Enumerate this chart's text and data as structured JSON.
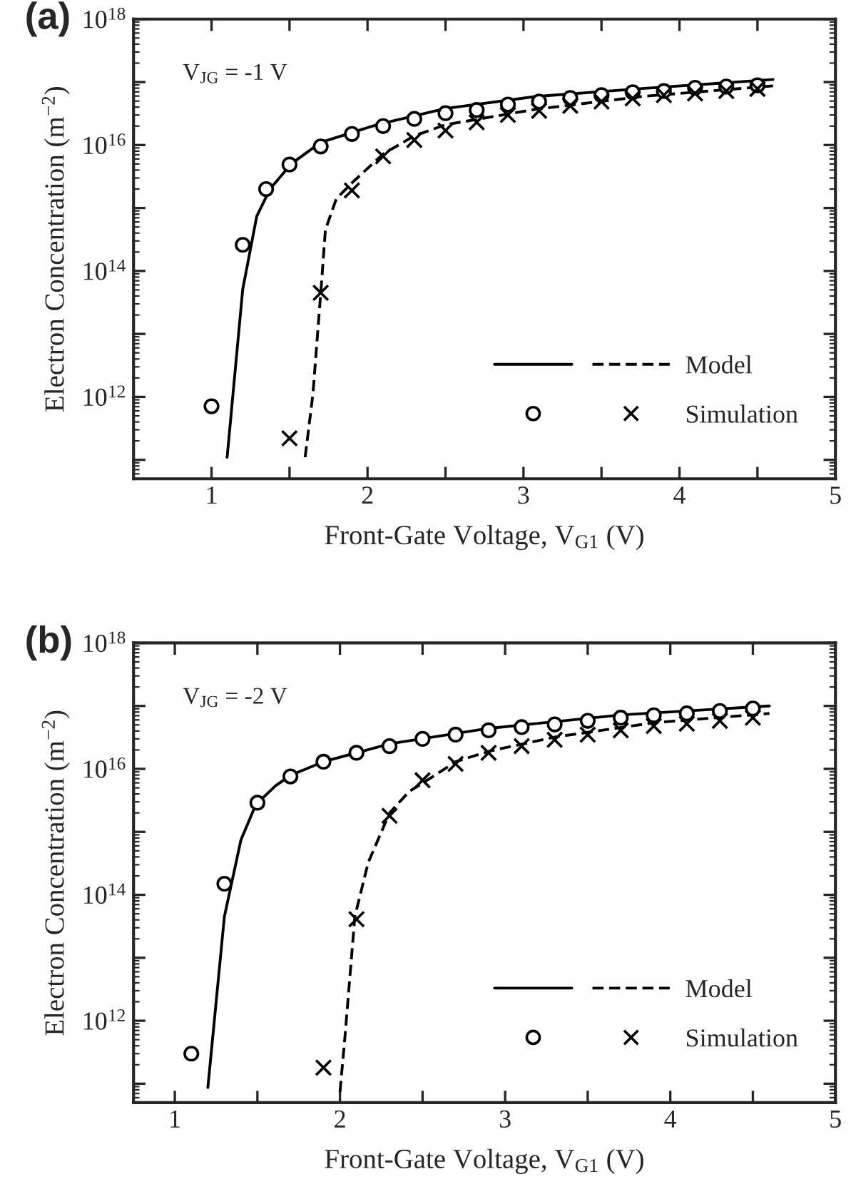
{
  "chart_data": [
    {
      "type": "line",
      "xlabel": "Front-Gate Voltage, V$_{G1}$ (V)",
      "ylabel": "Electron Concentration (m$^{−2}$)",
      "annotations": [
        "(a)",
        "V$_{JG}$ = -1 V"
      ],
      "log": "y",
      "grid": false,
      "legend": "bottom right",
      "xlim": [
        0.5,
        5
      ],
      "xticks": [
        1,
        {
          "value": 1.5,
          "label": null
        },
        2,
        {
          "value": 2.5,
          "label": null
        },
        3,
        {
          "value": 3.5,
          "label": null
        },
        4,
        {
          "value": 4.5,
          "label": null
        },
        5
      ],
      "ylim": [
        50000000000.0,
        1e+18
      ],
      "yticks": [
        {
          "value": 100000000000.0,
          "label": null
        },
        {
          "value": 1000000000000.0,
          "label": "10$^{12}$"
        },
        {
          "value": 10000000000000.0,
          "label": null
        },
        {
          "value": 100000000000000.0,
          "label": "10$^{14}$"
        },
        {
          "value": 1000000000000000.0,
          "label": null
        },
        {
          "value": 1e+16,
          "label": "10$^{16}$"
        },
        {
          "value": 1e+17,
          "label": null
        },
        {
          "value": 1e+18,
          "label": "10$^{18}$"
        }
      ],
      "series": [
        {
          "type": "line",
          "line_style": "solid",
          "marker": "none",
          "color": "#000000",
          "x": [
            1.1,
            1.2,
            1.29,
            1.375,
            1.51,
            1.7,
            2.06,
            2.5,
            3.08,
            3.76,
            4.6
          ],
          "values": [
            110000000000.0,
            51000000000000.0,
            740000000000000.0,
            2000000000000000.0,
            5000000000000000.0,
            1.1e+16,
            2.1e+16,
            3.8e+16,
            5.9e+16,
            7.9e+16,
            1.1e+17
          ]
        },
        {
          "name": "Model",
          "type": "line",
          "line_style": "dashed",
          "marker": "none",
          "color": "#000000",
          "x": [
            1.6,
            1.65,
            1.706,
            1.73,
            1.8,
            1.9,
            2.1,
            2.3,
            2.5,
            3.08,
            3.76,
            4.6
          ],
          "values": [
            110000000000.0,
            1100000000000.0,
            69000000000000.0,
            450000000000000.0,
            1400000000000000.0,
            2500000000000000.0,
            7200000000000000.0,
            1.4e+16,
            2.1e+16,
            3.7e+16,
            5.9e+16,
            8.7e+16
          ]
        },
        {
          "type": "scatter",
          "marker": "circle",
          "color": "#000000",
          "x": [
            1.0,
            1.2,
            1.35,
            1.5,
            1.7,
            1.9,
            2.1,
            2.3,
            2.5,
            2.7,
            2.9,
            3.1,
            3.3,
            3.5,
            3.7,
            3.9,
            4.1,
            4.3,
            4.5
          ],
          "values": [
            710000000000.0,
            260000000000000.0,
            2000000000000000.0,
            4900000000000000.0,
            9500000000000000.0,
            1.5e+16,
            2e+16,
            2.6e+16,
            3.2e+16,
            3.6e+16,
            4.4e+16,
            4.9e+16,
            5.6e+16,
            6.2e+16,
            6.9e+16,
            7.2e+16,
            8.1e+16,
            8.5e+16,
            8.9e+16
          ]
        },
        {
          "name": "Simulation",
          "type": "scatter",
          "marker": "cross",
          "color": "#000000",
          "x": [
            1.5,
            1.7,
            1.9,
            2.1,
            2.3,
            2.5,
            2.7,
            2.9,
            3.1,
            3.3,
            3.5,
            3.7,
            3.9,
            4.1,
            4.3,
            4.5
          ],
          "values": [
            220000000000.0,
            45000000000000.0,
            1900000000000000.0,
            6600000000000000.0,
            1.2e+16,
            1.7e+16,
            2.3e+16,
            3e+16,
            3.5e+16,
            4.2e+16,
            4.9e+16,
            5.5e+16,
            6.2e+16,
            6.6e+16,
            7.2e+16,
            7.8e+16
          ]
        }
      ]
    },
    {
      "type": "line",
      "xlabel": "Front-Gate Voltage, V$_{G1}$ (V)",
      "ylabel": "Electron Concentration (m$^{−2}$)",
      "annotations": [
        "(b)",
        "V$_{JG}$ = -2 V"
      ],
      "log": "y",
      "grid": false,
      "legend": "bottom right",
      "xlim": [
        0.75,
        5
      ],
      "xticks": [
        1,
        {
          "value": 1.5,
          "label": null
        },
        2,
        {
          "value": 2.5,
          "label": null
        },
        3,
        {
          "value": 3.5,
          "label": null
        },
        4,
        {
          "value": 4.5,
          "label": null
        },
        5
      ],
      "ylim": [
        50000000000.0,
        1e+18
      ],
      "yticks": [
        {
          "value": 100000000000.0,
          "label": null
        },
        {
          "value": 1000000000000.0,
          "label": "10$^{12}$"
        },
        {
          "value": 10000000000000.0,
          "label": null
        },
        {
          "value": 100000000000000.0,
          "label": "10$^{14}$"
        },
        {
          "value": 1000000000000000.0,
          "label": null
        },
        {
          "value": 1e+16,
          "label": "10$^{16}$"
        },
        {
          "value": 1e+17,
          "label": null
        },
        {
          "value": 1e+18,
          "label": "10$^{18}$"
        }
      ],
      "series": [
        {
          "type": "line",
          "line_style": "solid",
          "marker": "none",
          "color": "#000000",
          "x": [
            1.2,
            1.3,
            1.4,
            1.49,
            1.61,
            1.7,
            1.9,
            2.3,
            2.9,
            3.7,
            4.6
          ],
          "values": [
            87000000000.0,
            45000000000000.0,
            740000000000000.0,
            2700000000000000.0,
            5400000000000000.0,
            7900000000000000.0,
            1.3e+16,
            2.5e+16,
            4.4e+16,
            7.2e+16,
            1e+17
          ]
        },
        {
          "name": "Model",
          "type": "line",
          "line_style": "dashed",
          "marker": "none",
          "color": "#000000",
          "x": [
            2.0,
            2.03,
            2.09,
            2.17,
            2.3,
            2.42,
            2.55,
            2.7,
            2.9,
            3.3,
            3.9,
            4.6
          ],
          "values": [
            74000000000.0,
            550000000000.0,
            45000000000000.0,
            320000000000000.0,
            2000000000000000.0,
            4400000000000000.0,
            7200000000000000.0,
            1.3e+16,
            1.9e+16,
            3.2e+16,
            5.4e+16,
            7.6e+16
          ]
        },
        {
          "type": "scatter",
          "marker": "circle",
          "color": "#000000",
          "x": [
            1.1,
            1.3,
            1.5,
            1.7,
            1.9,
            2.1,
            2.3,
            2.5,
            2.7,
            2.9,
            3.1,
            3.3,
            3.5,
            3.7,
            3.9,
            4.1,
            4.3,
            4.5
          ],
          "values": [
            300000000000.0,
            150000000000000.0,
            2900000000000000.0,
            7600000000000000.0,
            1.3e+16,
            1.8e+16,
            2.3e+16,
            3e+16,
            3.5e+16,
            4.1e+16,
            4.6e+16,
            5.1e+16,
            5.8e+16,
            6.5e+16,
            7.1e+16,
            7.6e+16,
            8.3e+16,
            9.1e+16
          ]
        },
        {
          "name": "Simulation",
          "type": "scatter",
          "marker": "cross",
          "color": "#000000",
          "x": [
            1.9,
            2.1,
            2.3,
            2.5,
            2.7,
            2.9,
            3.1,
            3.3,
            3.5,
            3.7,
            3.9,
            4.1,
            4.3,
            4.5
          ],
          "values": [
            180000000000.0,
            41000000000000.0,
            1800000000000000.0,
            6600000000000000.0,
            1.2e+16,
            1.8e+16,
            2.3e+16,
            2.9e+16,
            3.5e+16,
            4.1e+16,
            4.8e+16,
            5.2e+16,
            5.8e+16,
            6.5e+16
          ]
        }
      ]
    }
  ]
}
